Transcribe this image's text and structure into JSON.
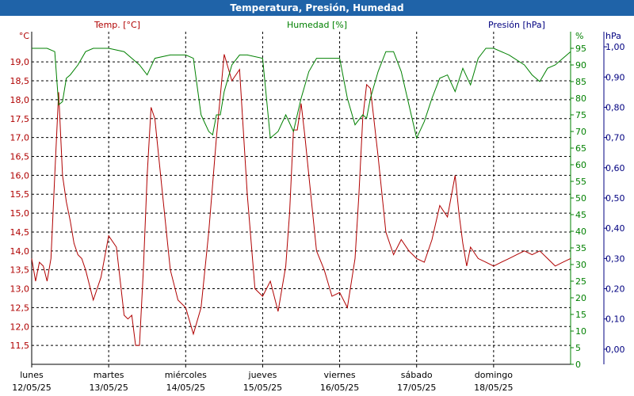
{
  "title": "Temperatura, Presión, Humedad",
  "colors": {
    "title_bg": "#1f63a8",
    "temp": "#b00000",
    "hum": "#008000",
    "pres": "#000080",
    "grid": "#000000"
  },
  "chart_data": {
    "type": "line",
    "x_axis": {
      "days": [
        {
          "weekday": "lunes",
          "date": "12/05/25"
        },
        {
          "weekday": "martes",
          "date": "13/05/25"
        },
        {
          "weekday": "miércoles",
          "date": "14/05/25"
        },
        {
          "weekday": "jueves",
          "date": "15/05/25"
        },
        {
          "weekday": "viernes",
          "date": "16/05/25"
        },
        {
          "weekday": "sábado",
          "date": "17/05/25"
        },
        {
          "weekday": "domingo",
          "date": "18/05/25"
        }
      ],
      "range_days": [
        0,
        7
      ]
    },
    "axes": {
      "temp": {
        "label": "Temp. [°C]",
        "unit": "°C",
        "range": [
          11.0,
          19.8
        ],
        "ticks": [
          "11,5",
          "12,0",
          "12,5",
          "13,0",
          "13,5",
          "14,0",
          "14,5",
          "15,0",
          "15,5",
          "16,0",
          "16,5",
          "17,0",
          "17,5",
          "18,0",
          "18,5",
          "19,0"
        ]
      },
      "hum": {
        "label": "Humedad [%]",
        "unit": "%",
        "range": [
          0,
          100
        ],
        "ticks": [
          "0",
          "5",
          "10",
          "15",
          "20",
          "25",
          "30",
          "35",
          "40",
          "45",
          "50",
          "55",
          "60",
          "65",
          "70",
          "75",
          "80",
          "85",
          "90",
          "95"
        ]
      },
      "pres": {
        "label": "Presión [hPa]",
        "unit": "hPa",
        "range": [
          -0.05,
          1.05
        ],
        "ticks": [
          "0,00",
          "0,10",
          "0,20",
          "0,30",
          "0,40",
          "0,50",
          "0,60",
          "0,70",
          "0,80",
          "0,90",
          "1,00"
        ]
      }
    },
    "grid": true,
    "series": [
      {
        "name": "Temp. [°C]",
        "axis": "temp",
        "x": [
          0,
          0.05,
          0.1,
          0.15,
          0.2,
          0.25,
          0.3,
          0.35,
          0.4,
          0.45,
          0.5,
          0.55,
          0.6,
          0.65,
          0.7,
          0.8,
          0.9,
          1.0,
          1.1,
          1.2,
          1.25,
          1.3,
          1.35,
          1.4,
          1.45,
          1.5,
          1.55,
          1.6,
          1.7,
          1.8,
          1.9,
          2.0,
          2.1,
          2.2,
          2.3,
          2.4,
          2.5,
          2.6,
          2.7,
          2.8,
          2.9,
          3.0,
          3.1,
          3.2,
          3.3,
          3.35,
          3.4,
          3.45,
          3.5,
          3.55,
          3.6,
          3.7,
          3.8,
          3.9,
          4.0,
          4.1,
          4.2,
          4.25,
          4.3,
          4.35,
          4.4,
          4.5,
          4.6,
          4.7,
          4.8,
          4.9,
          5.0,
          5.1,
          5.2,
          5.3,
          5.4,
          5.5,
          5.55,
          5.6,
          5.65,
          5.7,
          5.8,
          5.9,
          6.0,
          6.1,
          6.2,
          6.3,
          6.4,
          6.5,
          6.6,
          6.7,
          6.8,
          6.9,
          7.0
        ],
        "y": [
          13.8,
          13.2,
          13.7,
          13.6,
          13.2,
          13.8,
          16.0,
          18.2,
          16.0,
          15.3,
          14.8,
          14.2,
          13.9,
          13.8,
          13.5,
          12.7,
          13.3,
          14.4,
          14.1,
          12.3,
          12.2,
          12.3,
          11.5,
          11.5,
          13.5,
          16.0,
          17.8,
          17.5,
          15.5,
          13.5,
          12.7,
          12.5,
          11.8,
          12.5,
          14.5,
          17.0,
          19.2,
          18.5,
          18.8,
          15.5,
          13.0,
          12.8,
          13.2,
          12.4,
          13.6,
          15.0,
          17.2,
          17.2,
          17.9,
          17.0,
          16.0,
          14.0,
          13.5,
          12.8,
          12.9,
          12.5,
          13.8,
          15.5,
          17.5,
          18.4,
          18.3,
          16.5,
          14.5,
          13.9,
          14.3,
          14.0,
          13.8,
          13.7,
          14.3,
          15.2,
          14.9,
          16.0,
          15.0,
          14.2,
          13.6,
          14.1,
          13.8,
          13.7,
          13.6,
          13.7,
          13.8,
          13.9,
          14.0,
          13.9,
          14.0,
          13.8,
          13.6,
          13.7,
          13.8
        ]
      },
      {
        "name": "Humedad [%]",
        "axis": "hum",
        "x": [
          0,
          0.2,
          0.3,
          0.35,
          0.4,
          0.45,
          0.5,
          0.6,
          0.7,
          0.8,
          1.0,
          1.2,
          1.4,
          1.5,
          1.6,
          1.8,
          2.0,
          2.1,
          2.2,
          2.3,
          2.35,
          2.4,
          2.45,
          2.5,
          2.6,
          2.7,
          2.8,
          3.0,
          3.1,
          3.2,
          3.3,
          3.4,
          3.45,
          3.5,
          3.6,
          3.7,
          3.8,
          3.9,
          4.0,
          4.1,
          4.2,
          4.3,
          4.35,
          4.4,
          4.5,
          4.6,
          4.7,
          4.8,
          4.9,
          5.0,
          5.1,
          5.2,
          5.3,
          5.4,
          5.5,
          5.6,
          5.7,
          5.8,
          5.9,
          6.0,
          6.2,
          6.4,
          6.5,
          6.6,
          6.7,
          6.8,
          6.9,
          7.0
        ],
        "y": [
          95,
          95,
          94,
          78,
          79,
          86,
          87,
          90,
          94,
          95,
          95,
          94,
          90,
          87,
          92,
          93,
          93,
          92,
          75,
          70,
          69,
          75,
          75,
          82,
          90,
          93,
          93,
          92,
          68,
          70,
          75,
          70,
          75,
          80,
          88,
          92,
          92,
          92,
          92,
          80,
          72,
          75,
          74,
          80,
          88,
          94,
          94,
          88,
          78,
          68,
          73,
          80,
          86,
          87,
          82,
          89,
          84,
          92,
          95,
          95,
          93,
          90,
          87,
          85,
          89,
          90,
          92,
          94
        ]
      }
    ]
  }
}
